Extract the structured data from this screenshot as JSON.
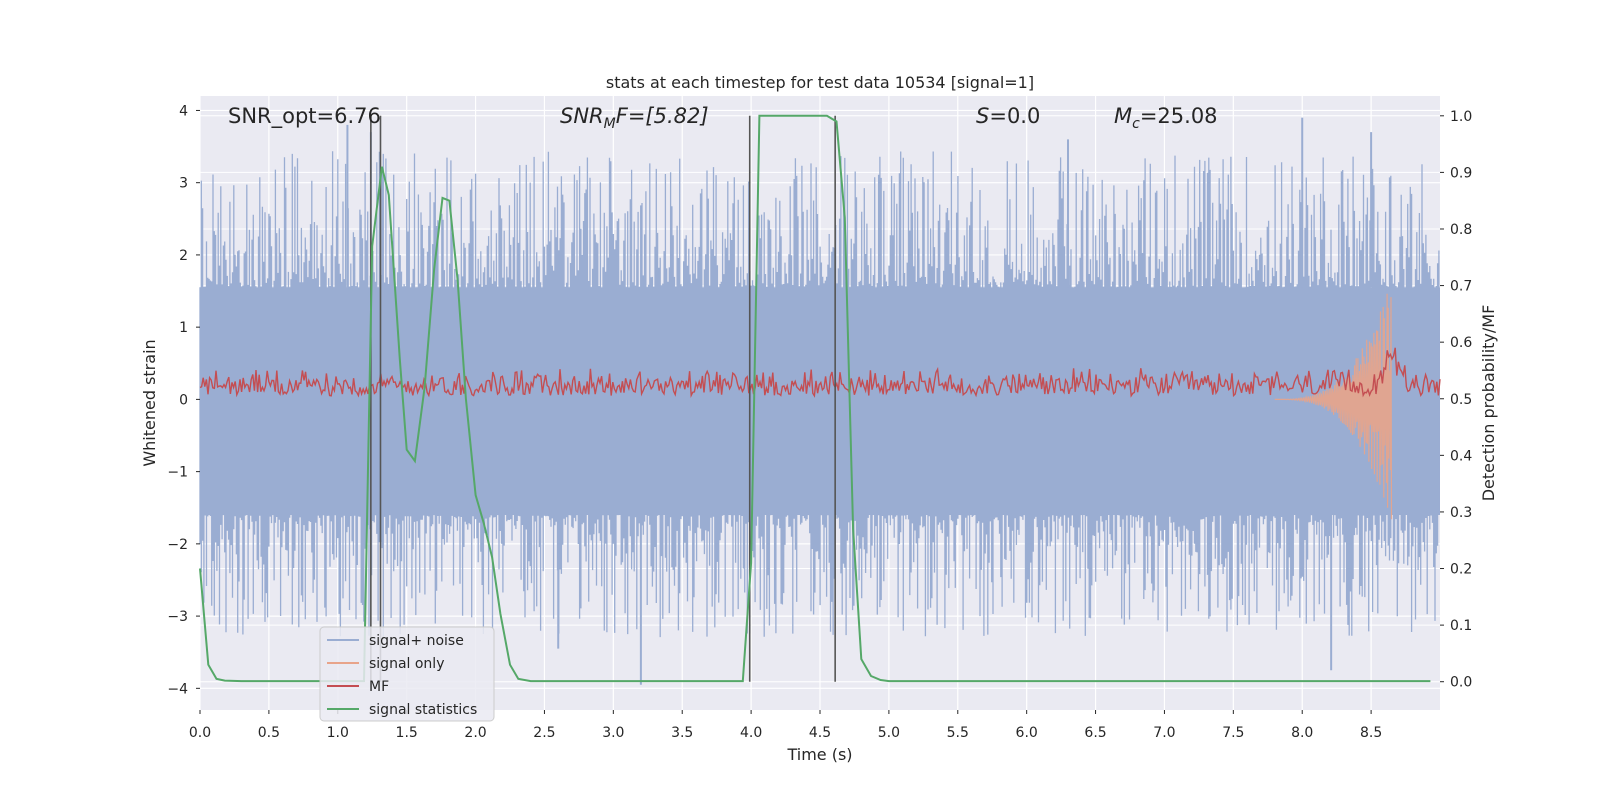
{
  "chart_data": {
    "type": "line",
    "title": "stats at each timestep for test data 10534 [signal=1]",
    "xlabel": "Time (s)",
    "ylabel": "Whitened strain",
    "y2label": "Detection probability/MF",
    "xlim": [
      0.0,
      9.0
    ],
    "ylim": [
      -4.3,
      4.2
    ],
    "y2lim": [
      -0.05,
      1.035
    ],
    "xticks": [
      0.0,
      0.5,
      1.0,
      1.5,
      2.0,
      2.5,
      3.0,
      3.5,
      4.0,
      4.5,
      5.0,
      5.5,
      6.0,
      6.5,
      7.0,
      7.5,
      8.0,
      8.5
    ],
    "xtick_labels": [
      "0.0",
      "0.5",
      "1.0",
      "1.5",
      "2.0",
      "2.5",
      "3.0",
      "3.5",
      "4.0",
      "4.5",
      "5.0",
      "5.5",
      "6.0",
      "6.5",
      "7.0",
      "7.5",
      "8.0",
      "8.5"
    ],
    "yticks": [
      -4,
      -3,
      -2,
      -1,
      0,
      1,
      2,
      3,
      4
    ],
    "ytick_labels": [
      "−4",
      "−3",
      "−2",
      "−1",
      "0",
      "1",
      "2",
      "3",
      "4"
    ],
    "y2ticks": [
      0.0,
      0.1,
      0.2,
      0.3,
      0.4,
      0.5,
      0.6,
      0.7,
      0.8,
      0.9,
      1.0
    ],
    "y2tick_labels": [
      "0.0",
      "0.1",
      "0.2",
      "0.3",
      "0.4",
      "0.5",
      "0.6",
      "0.7",
      "0.8",
      "0.9",
      "1.0"
    ],
    "annotations": {
      "snr_opt": "SNR_opt=6.76",
      "snr_mf_base": "SNR",
      "snr_mf_sub": "M",
      "snr_mf_rest": "F=[5.82]",
      "s_italic": "S",
      "s_rest": "=0.0",
      "mc_base": "M",
      "mc_sub": "c",
      "mc_rest": "=25.08"
    },
    "legend": {
      "placement": "lower-left",
      "entries": [
        "signal+ noise",
        "signal only",
        "MF",
        "signal statistics"
      ]
    },
    "colors": {
      "background": "#eaeaf2",
      "grid": "#ffffff",
      "noise": "#9aadd2",
      "signal_only": "#e8a48a",
      "mf": "#c44e52",
      "stat": "#55a868",
      "vline": "#555555",
      "text": "#262626"
    },
    "noise_band_y": [
      -1.6,
      1.55
    ],
    "noise_spike_peak": [
      {
        "t": 1.07,
        "y": 3.8
      },
      {
        "t": 1.24,
        "y": 3.7
      },
      {
        "t": 8.0,
        "y": 3.9
      },
      {
        "t": 6.3,
        "y": 3.6
      },
      {
        "t": 8.5,
        "y": 3.7
      },
      {
        "t": 8.21,
        "y": -3.75
      },
      {
        "t": 3.2,
        "y": -3.95
      },
      {
        "t": 2.6,
        "y": -3.45
      }
    ],
    "signal_only_chirp": {
      "t_start": 7.8,
      "t_merger": 8.65,
      "peak_amp": 1.7
    },
    "mf_band": {
      "low": 0.05,
      "high": 0.45,
      "peak_t": 8.65,
      "peak_y": 1.0
    },
    "vertical_lines_t": [
      1.24,
      1.31,
      3.99,
      4.61
    ],
    "signal_statistics": {
      "t": [
        0.0,
        0.06,
        0.12,
        0.18,
        0.3,
        0.9,
        1.19,
        1.25,
        1.32,
        1.37,
        1.45,
        1.5,
        1.56,
        1.63,
        1.7,
        1.76,
        1.81,
        1.87,
        1.93,
        2.0,
        2.06,
        2.12,
        2.18,
        2.25,
        2.31,
        2.4,
        3.0,
        3.5,
        3.94,
        4.0,
        4.06,
        4.55,
        4.62,
        4.68,
        4.74,
        4.8,
        4.87,
        4.94,
        5.0,
        8.93
      ],
      "y": [
        0.2,
        0.03,
        0.005,
        0.002,
        0.001,
        0.001,
        0.001,
        0.77,
        0.91,
        0.86,
        0.57,
        0.41,
        0.39,
        0.52,
        0.73,
        0.855,
        0.85,
        0.71,
        0.5,
        0.33,
        0.28,
        0.22,
        0.12,
        0.03,
        0.005,
        0.001,
        0.001,
        0.001,
        0.001,
        0.21,
        1.0,
        1.0,
        0.99,
        0.82,
        0.27,
        0.04,
        0.01,
        0.003,
        0.001,
        0.001
      ]
    }
  }
}
